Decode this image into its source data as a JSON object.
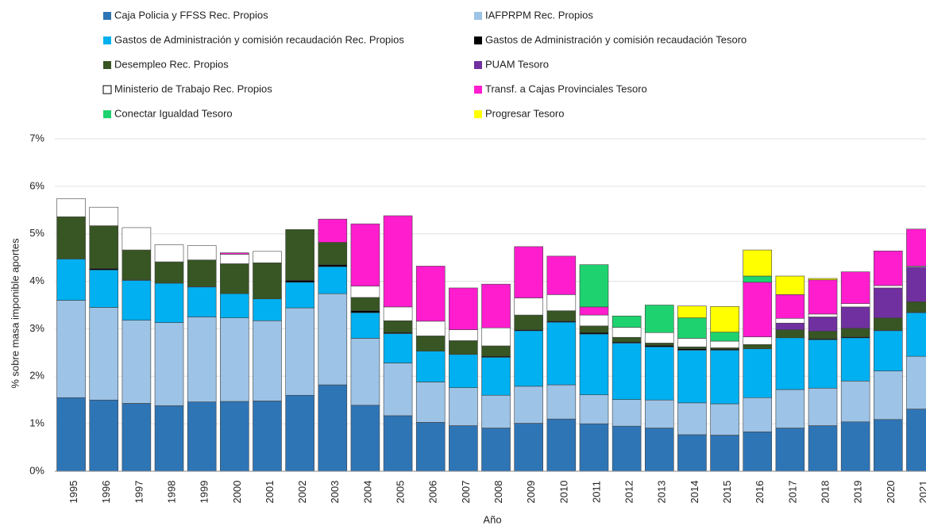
{
  "chart_data": {
    "type": "stacked_bar",
    "y_label": "% sobre masa imponible aportes",
    "x_label": "Año",
    "categories": [
      "1995",
      "1996",
      "1997",
      "1998",
      "1999",
      "2000",
      "2001",
      "2002",
      "2003",
      "2004",
      "2005",
      "2006",
      "2007",
      "2008",
      "2009",
      "2010",
      "2011",
      "2012",
      "2013",
      "2014",
      "2015",
      "2016",
      "2017",
      "2018",
      "2019",
      "2020",
      "2021"
    ],
    "series": [
      {
        "name": "Caja Policia y FFSS Rec. Propios",
        "color": "#2e75b6",
        "values": [
          1.55,
          1.5,
          1.43,
          1.38,
          1.46,
          1.47,
          1.48,
          1.6,
          1.82,
          1.39,
          1.17,
          1.03,
          0.96,
          0.91,
          1.01,
          1.1,
          1.0,
          0.95,
          0.91,
          0.77,
          0.76,
          0.83,
          0.91,
          0.96,
          1.04,
          1.09,
          1.31
        ]
      },
      {
        "name": "IAFPRPM Rec. Propios",
        "color": "#9dc3e6",
        "values": [
          2.05,
          1.95,
          1.75,
          1.75,
          1.79,
          1.76,
          1.69,
          1.84,
          1.92,
          1.41,
          1.11,
          0.85,
          0.8,
          0.69,
          0.78,
          0.72,
          0.61,
          0.56,
          0.59,
          0.67,
          0.66,
          0.72,
          0.81,
          0.79,
          0.86,
          1.02,
          1.11
        ]
      },
      {
        "name": "Gastos de Administración y comisión recaudación Rec. Propios",
        "color": "#00b0f0",
        "values": [
          0.87,
          0.79,
          0.84,
          0.83,
          0.63,
          0.51,
          0.46,
          0.54,
          0.57,
          0.54,
          0.62,
          0.65,
          0.7,
          0.8,
          1.17,
          1.32,
          1.28,
          1.19,
          1.12,
          1.11,
          1.13,
          1.03,
          1.09,
          1.02,
          0.91,
          0.85,
          0.92
        ]
      },
      {
        "name": "Gastos de Administración y comisión recaudación Tesoro",
        "color": "#000000",
        "values": [
          0,
          0.03,
          0.01,
          0,
          0.01,
          0,
          0,
          0.04,
          0.04,
          0.04,
          0.02,
          0,
          0,
          0.02,
          0.02,
          0.02,
          0.03,
          0.02,
          0.03,
          0.03,
          0.02,
          0,
          0,
          0.02,
          0.02,
          0.01,
          0.01
        ]
      },
      {
        "name": "Desempleo Rec. Propios",
        "color": "#375623",
        "values": [
          0.89,
          0.9,
          0.63,
          0.45,
          0.56,
          0.63,
          0.76,
          1.07,
          0.47,
          0.28,
          0.25,
          0.32,
          0.29,
          0.22,
          0.31,
          0.22,
          0.14,
          0.1,
          0.05,
          0.04,
          0.03,
          0.09,
          0.17,
          0.16,
          0.18,
          0.26,
          0.22
        ]
      },
      {
        "name": "PUAM Tesoro",
        "color": "#7030a0",
        "values": [
          0,
          0,
          0,
          0,
          0,
          0,
          0,
          0,
          0,
          0,
          0,
          0,
          0,
          0,
          0,
          0,
          0,
          0,
          0,
          0,
          0,
          0,
          0.14,
          0.3,
          0.45,
          0.63,
          0.73
        ]
      },
      {
        "name": "Ministerio de Trabajo Rec. Propios",
        "color": "#ffffff",
        "values": [
          0.38,
          0.39,
          0.47,
          0.36,
          0.3,
          0.2,
          0.24,
          0,
          0,
          0.24,
          0.29,
          0.31,
          0.23,
          0.38,
          0.36,
          0.34,
          0.23,
          0.21,
          0.22,
          0.18,
          0.14,
          0.16,
          0.1,
          0.06,
          0.07,
          0.05,
          0.02
        ]
      },
      {
        "name": "Transf. a Cajas Provinciales Tesoro",
        "color": "#ff1dce",
        "values": [
          0,
          0,
          0,
          0,
          0,
          0.03,
          0,
          0,
          0.49,
          1.31,
          1.92,
          1.16,
          0.88,
          0.92,
          1.08,
          0.81,
          0.17,
          0,
          0,
          0,
          0,
          1.15,
          0.5,
          0.72,
          0.67,
          0.73,
          0.78
        ]
      },
      {
        "name": "Conectar Igualdad Tesoro",
        "color": "#1ed36f",
        "values": [
          0,
          0,
          0,
          0,
          0,
          0,
          0,
          0,
          0,
          0,
          0,
          0,
          0,
          0,
          0,
          0,
          0.89,
          0.24,
          0.58,
          0.43,
          0.19,
          0.13,
          0,
          0,
          0,
          0,
          0
        ]
      },
      {
        "name": "Progresar Tesoro",
        "color": "#ffff00",
        "values": [
          0,
          0,
          0,
          0,
          0,
          0,
          0,
          0,
          0,
          0,
          0,
          0,
          0,
          0,
          0,
          0,
          0,
          0,
          0,
          0.25,
          0.54,
          0.55,
          0.39,
          0.03,
          0,
          0,
          0
        ]
      }
    ],
    "ylim": [
      0,
      7
    ],
    "yticks": [
      {
        "value": 0,
        "label": "0%"
      },
      {
        "value": 1,
        "label": "1%"
      },
      {
        "value": 2,
        "label": "2%"
      },
      {
        "value": 3,
        "label": "3%"
      },
      {
        "value": 4,
        "label": "4%"
      },
      {
        "value": 5,
        "label": "5%"
      },
      {
        "value": 6,
        "label": "6%"
      },
      {
        "value": 7,
        "label": "7%"
      }
    ],
    "grid": true
  }
}
